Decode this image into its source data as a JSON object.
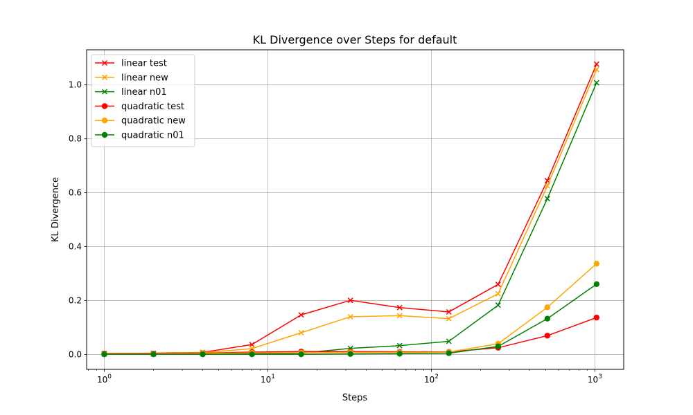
{
  "chart_data": {
    "type": "line",
    "title": "KL Divergence over Steps for default",
    "xlabel": "Steps",
    "ylabel": "KL Divergence",
    "xscale": "log",
    "xlim": [
      0.78,
      1500
    ],
    "ylim": [
      -0.055,
      1.13
    ],
    "grid": true,
    "legend_position": "top-left",
    "x_tick_labels": [
      {
        "value": 1,
        "base": "10",
        "exp": "0"
      },
      {
        "value": 10,
        "base": "10",
        "exp": "1"
      },
      {
        "value": 100,
        "base": "10",
        "exp": "2"
      },
      {
        "value": 1000,
        "base": "10",
        "exp": "3"
      }
    ],
    "y_ticks": [
      0.0,
      0.2,
      0.4,
      0.6,
      0.8,
      1.0
    ],
    "y_tick_labels": [
      "0.0",
      "0.2",
      "0.4",
      "0.6",
      "0.8",
      "1.0"
    ],
    "x": [
      1,
      2,
      4,
      8,
      16,
      32,
      64,
      128,
      256,
      512,
      1024
    ],
    "series": [
      {
        "name": "linear test",
        "color": "#ff0000",
        "marker": "x",
        "values": [
          0.004,
          0.005,
          0.008,
          0.037,
          0.147,
          0.201,
          0.174,
          0.158,
          0.26,
          0.645,
          1.077
        ]
      },
      {
        "name": "linear new",
        "color": "#ffa500",
        "marker": "x",
        "values": [
          0.004,
          0.004,
          0.007,
          0.022,
          0.081,
          0.14,
          0.144,
          0.133,
          0.225,
          0.625,
          1.057
        ]
      },
      {
        "name": "linear n01",
        "color": "#008000",
        "marker": "x",
        "values": [
          0.002,
          0.002,
          0.003,
          0.004,
          0.005,
          0.023,
          0.033,
          0.049,
          0.183,
          0.578,
          1.008
        ]
      },
      {
        "name": "quadratic test",
        "color": "#ff0000",
        "marker": "o",
        "values": [
          0.003,
          0.003,
          0.005,
          0.009,
          0.011,
          0.011,
          0.01,
          0.01,
          0.025,
          0.07,
          0.137
        ]
      },
      {
        "name": "quadratic new",
        "color": "#ffa500",
        "marker": "o",
        "values": [
          0.002,
          0.002,
          0.004,
          0.006,
          0.007,
          0.008,
          0.008,
          0.009,
          0.04,
          0.175,
          0.337
        ]
      },
      {
        "name": "quadratic n01",
        "color": "#008000",
        "marker": "o",
        "values": [
          0.001,
          0.001,
          0.001,
          0.001,
          0.001,
          0.002,
          0.003,
          0.005,
          0.03,
          0.133,
          0.261
        ]
      }
    ]
  }
}
